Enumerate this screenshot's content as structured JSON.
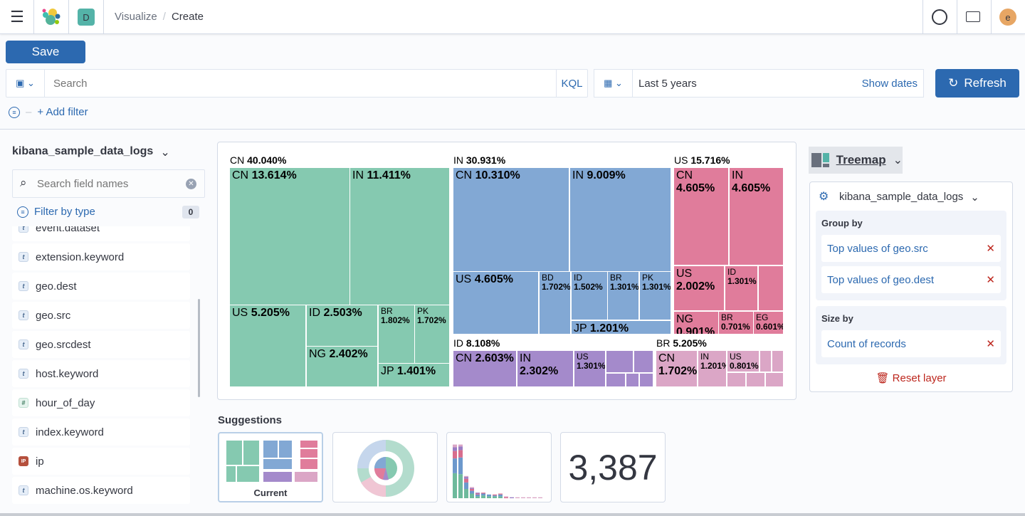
{
  "header": {
    "space_initial": "D",
    "breadcrumbs": [
      "Visualize",
      "Create"
    ],
    "avatar_initial": "e"
  },
  "toolbar": {
    "save_label": "Save",
    "search_placeholder": "Search",
    "kql_label": "KQL",
    "date_range": "Last 5 years",
    "show_dates_label": "Show dates",
    "refresh_label": "Refresh",
    "add_filter_label": "+ Add filter"
  },
  "sidebar": {
    "index_pattern": "kibana_sample_data_logs",
    "search_placeholder": "Search field names",
    "filter_by_type_label": "Filter by type",
    "filter_count": "0",
    "fields": [
      {
        "name": "event.dataset",
        "type": "t"
      },
      {
        "name": "extension.keyword",
        "type": "t"
      },
      {
        "name": "geo.dest",
        "type": "t"
      },
      {
        "name": "geo.src",
        "type": "t"
      },
      {
        "name": "geo.srcdest",
        "type": "t"
      },
      {
        "name": "host.keyword",
        "type": "t"
      },
      {
        "name": "hour_of_day",
        "type": "#"
      },
      {
        "name": "index.keyword",
        "type": "t"
      },
      {
        "name": "ip",
        "type": "IP"
      },
      {
        "name": "machine.os.keyword",
        "type": "t"
      }
    ]
  },
  "chart_data": {
    "type": "treemap",
    "groups": [
      {
        "name": "CN",
        "pct": "40.040%",
        "color": "#85c9b0",
        "children": [
          {
            "name": "CN",
            "pct": "13.614%"
          },
          {
            "name": "IN",
            "pct": "11.411%"
          },
          {
            "name": "US",
            "pct": "5.205%"
          },
          {
            "name": "ID",
            "pct": "2.503%"
          },
          {
            "name": "NG",
            "pct": "2.402%"
          },
          {
            "name": "BR",
            "pct": "1.802%"
          },
          {
            "name": "PK",
            "pct": "1.702%"
          },
          {
            "name": "JP",
            "pct": "1.401%"
          }
        ]
      },
      {
        "name": "IN",
        "pct": "30.931%",
        "color": "#82a8d4",
        "children": [
          {
            "name": "CN",
            "pct": "10.310%"
          },
          {
            "name": "IN",
            "pct": "9.009%"
          },
          {
            "name": "US",
            "pct": "4.605%"
          },
          {
            "name": "BD",
            "pct": "1.702%"
          },
          {
            "name": "ID",
            "pct": "1.502%"
          },
          {
            "name": "BR",
            "pct": "1.301%"
          },
          {
            "name": "PK",
            "pct": "1.301%"
          },
          {
            "name": "JP",
            "pct": "1.201%"
          }
        ]
      },
      {
        "name": "US",
        "pct": "15.716%",
        "color": "#e07c9b",
        "children": [
          {
            "name": "CN",
            "pct": "4.605%"
          },
          {
            "name": "IN",
            "pct": "4.605%"
          },
          {
            "name": "US",
            "pct": "2.002%"
          },
          {
            "name": "ID",
            "pct": "1.301%"
          },
          {
            "name": "",
            "pct": ""
          },
          {
            "name": "NG",
            "pct": "0.901%"
          },
          {
            "name": "BR",
            "pct": "0.701%"
          },
          {
            "name": "EG",
            "pct": "0.601%"
          }
        ]
      },
      {
        "name": "ID",
        "pct": "8.108%",
        "color": "#a48acb",
        "children": [
          {
            "name": "CN",
            "pct": "2.603%"
          },
          {
            "name": "IN",
            "pct": "2.302%"
          },
          {
            "name": "US",
            "pct": "1.301%"
          },
          {
            "name": "",
            "pct": ""
          },
          {
            "name": "",
            "pct": ""
          },
          {
            "name": "",
            "pct": ""
          },
          {
            "name": "",
            "pct": ""
          },
          {
            "name": "",
            "pct": ""
          }
        ]
      },
      {
        "name": "BR",
        "pct": "5.205%",
        "color": "#dba6c6",
        "children": [
          {
            "name": "CN",
            "pct": "1.702%"
          },
          {
            "name": "IN",
            "pct": "1.201%"
          },
          {
            "name": "US",
            "pct": "0.801%"
          },
          {
            "name": "",
            "pct": ""
          },
          {
            "name": "",
            "pct": ""
          },
          {
            "name": "",
            "pct": ""
          },
          {
            "name": "",
            "pct": ""
          },
          {
            "name": "",
            "pct": ""
          }
        ]
      }
    ]
  },
  "suggestions": {
    "title": "Suggestions",
    "current_label": "Current",
    "metric_value": "3,387"
  },
  "config": {
    "chart_type": "Treemap",
    "layer_index": "kibana_sample_data_logs",
    "group_by_label": "Group by",
    "group_by": [
      "Top values of geo.src",
      "Top values of geo.dest"
    ],
    "size_by_label": "Size by",
    "size_by": [
      "Count of records"
    ],
    "reset_label": "Reset layer"
  }
}
